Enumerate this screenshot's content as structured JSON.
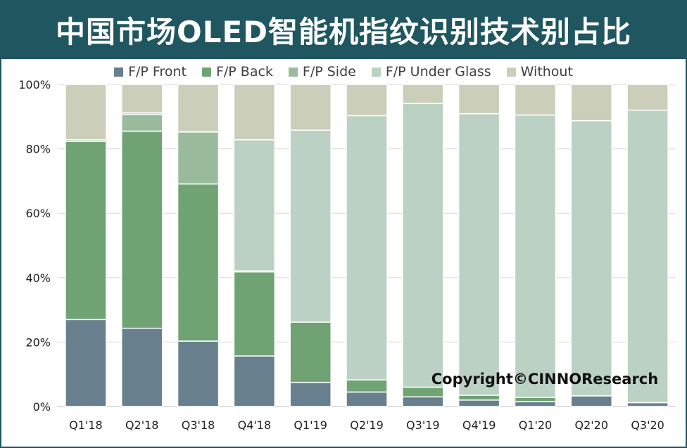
{
  "title": "中国市场OLED智能机指纹识别技术别占比",
  "copyright": "Copyright©CINNOResearch",
  "colors": {
    "title_bg": "#1f5660",
    "grid": "#d9d9d9",
    "separator": "#ffffff"
  },
  "chart_data": {
    "type": "bar",
    "stacked": true,
    "percent": true,
    "title": "中国市场OLED智能机指纹识别技术别占比",
    "categories": [
      "Q1'18",
      "Q2'18",
      "Q3'18",
      "Q4'18",
      "Q1'19",
      "Q2'19",
      "Q3'19",
      "Q4'19",
      "Q1'20",
      "Q2'20",
      "Q3'20"
    ],
    "y_ticks": [
      "0%",
      "20%",
      "40%",
      "60%",
      "80%",
      "100%"
    ],
    "ylim": [
      0,
      100
    ],
    "grid": true,
    "legend_position": "top",
    "series": [
      {
        "name": "F/P Front",
        "color": "#687f8d",
        "values": [
          27,
          24.3,
          20.3,
          15.7,
          7.5,
          4.5,
          3,
          2,
          1.5,
          3.3,
          1.2
        ]
      },
      {
        "name": "F/P Back",
        "color": "#70a373",
        "values": [
          55.3,
          61.2,
          48.8,
          26.1,
          18.7,
          3.8,
          3,
          1.5,
          1.3,
          0,
          0
        ]
      },
      {
        "name": "F/P Side",
        "color": "#99bb9b",
        "values": [
          0.5,
          5.2,
          16.1,
          0.3,
          0,
          0,
          0,
          0,
          0,
          0,
          0
        ]
      },
      {
        "name": "F/P Under Glass",
        "color": "#bbd1c3",
        "values": [
          0,
          0.5,
          0.1,
          40.7,
          59.6,
          82,
          88.1,
          87.4,
          87.7,
          85.4,
          90.8
        ]
      },
      {
        "name": "Without",
        "color": "#cbcfb9",
        "values": [
          17.2,
          8.8,
          14.7,
          17.2,
          14.2,
          9.7,
          5.9,
          9.1,
          9.5,
          11.3,
          8
        ]
      }
    ]
  }
}
